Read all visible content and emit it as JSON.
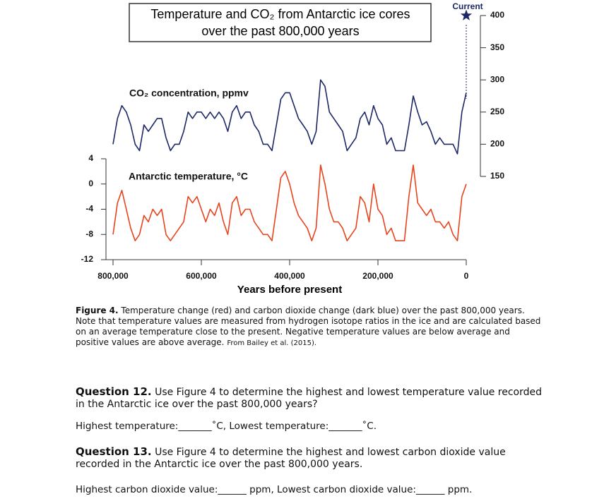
{
  "chart_data": {
    "type": "line",
    "title": [
      "Temperature and CO₂ from Antarctic ice cores",
      "over the past 800,000 years"
    ],
    "x_label": "Years before present",
    "x": [
      800000,
      790000,
      780000,
      770000,
      760000,
      750000,
      740000,
      730000,
      720000,
      710000,
      700000,
      690000,
      680000,
      670000,
      660000,
      650000,
      640000,
      630000,
      620000,
      610000,
      600000,
      590000,
      580000,
      570000,
      560000,
      550000,
      540000,
      530000,
      520000,
      510000,
      500000,
      490000,
      480000,
      470000,
      460000,
      450000,
      440000,
      430000,
      420000,
      410000,
      400000,
      390000,
      380000,
      370000,
      360000,
      350000,
      340000,
      330000,
      320000,
      310000,
      300000,
      290000,
      280000,
      270000,
      260000,
      250000,
      240000,
      230000,
      220000,
      210000,
      200000,
      190000,
      180000,
      170000,
      160000,
      150000,
      140000,
      130000,
      120000,
      110000,
      100000,
      90000,
      80000,
      70000,
      60000,
      50000,
      40000,
      30000,
      20000,
      10000,
      0
    ],
    "xlim": [
      800000,
      0
    ],
    "xticks": [
      {
        "value": 800000,
        "label": "800,000"
      },
      {
        "value": 600000,
        "label": "600,000"
      },
      {
        "value": 400000,
        "label": "400,000"
      },
      {
        "value": 200000,
        "label": "200,000"
      },
      0
    ],
    "series": [
      {
        "name": "CO₂ concentration, ppmv",
        "color": "#1c2766",
        "axis": "y2",
        "values": [
          200,
          240,
          260,
          250,
          230,
          200,
          190,
          230,
          220,
          230,
          240,
          240,
          210,
          190,
          200,
          200,
          220,
          250,
          240,
          250,
          250,
          240,
          250,
          240,
          250,
          240,
          220,
          250,
          260,
          240,
          250,
          250,
          230,
          220,
          200,
          200,
          190,
          230,
          270,
          280,
          280,
          260,
          240,
          230,
          220,
          200,
          220,
          300,
          290,
          250,
          240,
          230,
          220,
          190,
          200,
          210,
          240,
          250,
          230,
          260,
          240,
          230,
          200,
          210,
          190,
          190,
          190,
          230,
          275,
          250,
          230,
          235,
          220,
          200,
          210,
          200,
          200,
          200,
          185,
          250,
          280
        ]
      },
      {
        "name": "Antarctic temperature, °C",
        "color": "#e8431d",
        "axis": "y",
        "values": [
          -8,
          -3,
          -1,
          -4,
          -7,
          -9,
          -8,
          -5,
          -6,
          -4,
          -5,
          -4,
          -8,
          -9,
          -8,
          -7,
          -6,
          -2,
          -3,
          -2,
          -4,
          -6,
          -4,
          -5,
          -3,
          -6,
          -8,
          -3,
          -2,
          -5,
          -4,
          -4,
          -6,
          -7,
          -8,
          -8,
          -9,
          -4,
          1,
          2,
          0,
          -3,
          -5,
          -6,
          -7,
          -9,
          -7,
          3,
          0,
          -4,
          -6,
          -6,
          -7,
          -9,
          -8,
          -7,
          -2,
          -3,
          -6,
          0,
          -4,
          -5,
          -8,
          -7,
          -9,
          -9,
          -9,
          -2,
          3,
          -3,
          -4,
          -5,
          -4,
          -6,
          -6,
          -7,
          -6,
          -8,
          -9,
          -2,
          0
        ]
      }
    ],
    "ylim": [
      -12,
      4
    ],
    "yticks": [
      4,
      0,
      -4,
      -8,
      -12
    ],
    "y2lim": [
      150,
      400
    ],
    "y2ticks": [
      400,
      350,
      300,
      250,
      200,
      150
    ],
    "current": {
      "label": "Current",
      "value": 400
    }
  },
  "caption": {
    "label": "Figure 4.",
    "text": "Temperature change (red) and carbon dioxide change (dark blue) over the past 800,000 years. Note that temperature values are measured from hydrogen isotope ratios in the ice and are calculated based on an average temperature close to the present. Negative temperature values are below average and positive values are above average.",
    "source": "From Bailey et al. (2015)."
  },
  "questions": [
    {
      "label": "Question 12.",
      "text": "Use Figure 4 to determine the highest and lowest temperature value recorded in the Antarctic ice over the past 800,000 years?",
      "answer": "Highest temperature:_______˚C, Lowest temperature:_______˚C."
    },
    {
      "label": "Question 13.",
      "text": "Use Figure 4 to determine the highest and lowest carbon dioxide value recorded in the Antarctic ice over the past 800,000 years.",
      "answer": "Highest carbon dioxide value:______ ppm, Lowest carbon dioxide value:______ ppm."
    }
  ]
}
